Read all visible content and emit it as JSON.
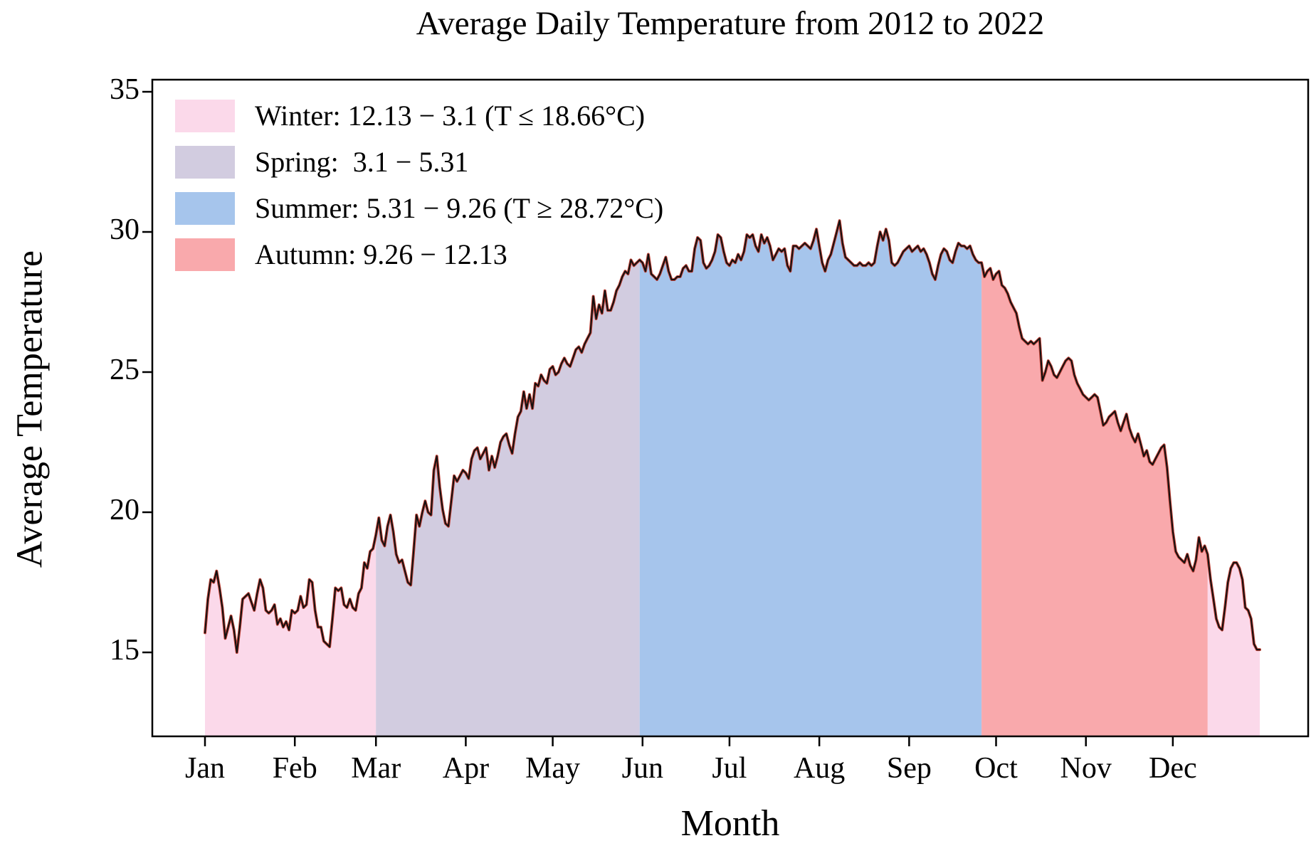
{
  "title": "Average Daily Temperature from 2012 to 2022",
  "axes": {
    "x_label": "Month",
    "y_label": "Average Temperature",
    "x_ticks": [
      "Jan",
      "Feb",
      "Mar",
      "Apr",
      "May",
      "Jun",
      "Jul",
      "Aug",
      "Sep",
      "Oct",
      "Nov",
      "Dec"
    ],
    "y_ticks": [
      15,
      20,
      25,
      30,
      35
    ]
  },
  "chart_data": {
    "type": "area",
    "title": "Average Daily Temperature from 2012 to 2022",
    "xlabel": "Month",
    "ylabel": "Average Temperature",
    "x_unit": "day_of_year_2012_2022_average",
    "ylim": [
      12,
      35.4
    ],
    "grid": false,
    "legend_position": "upper-left",
    "month_start_days": [
      0,
      31,
      59,
      90,
      120,
      151,
      181,
      212,
      243,
      273,
      304,
      334
    ],
    "line_color": "#111111",
    "line_underlay_color": "#bf4136",
    "axis_color": "#000000",
    "seasons": [
      {
        "name": "winter",
        "label": "Winter: 12.13 − 3.1 (T ≤ 18.66°C)",
        "color": "#fbd9ea",
        "segments": [
          [
            0,
            59
          ],
          [
            346,
            364
          ]
        ]
      },
      {
        "name": "spring",
        "label": "Spring:  3.1 − 5.31",
        "color": "#d2cce0",
        "segments": [
          [
            59,
            150
          ]
        ]
      },
      {
        "name": "summer",
        "label": "Summer: 5.31 − 9.26 (T ≥ 28.72°C)",
        "color": "#a6c5ec",
        "segments": [
          [
            150,
            268
          ]
        ]
      },
      {
        "name": "autumn",
        "label": "Autumn: 9.26 − 12.13",
        "color": "#f9a9ac",
        "segments": [
          [
            268,
            346
          ]
        ]
      }
    ],
    "series": [
      {
        "name": "daily_average_temperature_C",
        "values": [
          15.7,
          16.9,
          17.6,
          17.5,
          17.9,
          17.3,
          16.6,
          15.5,
          15.9,
          16.3,
          15.8,
          15.0,
          15.9,
          16.9,
          17.0,
          17.1,
          16.8,
          16.5,
          17.1,
          17.6,
          17.3,
          16.5,
          16.4,
          16.5,
          16.7,
          16.0,
          16.2,
          15.9,
          16.1,
          15.8,
          16.5,
          16.4,
          16.5,
          17.0,
          16.6,
          16.7,
          17.6,
          17.5,
          16.5,
          15.9,
          15.9,
          15.4,
          15.3,
          15.2,
          16.2,
          17.3,
          17.2,
          17.3,
          16.7,
          16.6,
          16.9,
          16.6,
          16.5,
          17.1,
          17.3,
          18.2,
          18.0,
          18.6,
          18.7,
          19.2,
          19.8,
          19.0,
          18.8,
          19.5,
          19.9,
          19.3,
          18.5,
          18.2,
          18.3,
          17.9,
          17.5,
          17.4,
          18.6,
          19.9,
          19.5,
          20.0,
          20.4,
          20.0,
          19.9,
          21.5,
          22.0,
          20.9,
          20.1,
          19.6,
          19.5,
          20.4,
          21.3,
          21.1,
          21.3,
          21.5,
          21.4,
          21.2,
          21.9,
          22.2,
          22.3,
          21.9,
          22.1,
          22.3,
          21.5,
          22.0,
          21.6,
          22.0,
          22.5,
          22.7,
          22.8,
          22.4,
          22.1,
          22.8,
          23.4,
          23.6,
          24.3,
          23.7,
          24.2,
          23.7,
          24.6,
          24.5,
          24.9,
          24.7,
          24.6,
          25.1,
          25.2,
          24.9,
          25.0,
          25.3,
          25.5,
          25.3,
          25.2,
          25.5,
          25.8,
          25.9,
          25.7,
          26.0,
          26.2,
          26.4,
          27.7,
          26.9,
          27.4,
          27.1,
          27.9,
          27.2,
          27.2,
          27.5,
          27.9,
          28.1,
          28.4,
          28.6,
          28.5,
          29.0,
          28.8,
          28.9,
          29.0,
          28.9,
          28.6,
          29.2,
          28.5,
          28.4,
          28.3,
          28.5,
          28.8,
          29.1,
          28.6,
          28.3,
          28.3,
          28.4,
          28.4,
          28.7,
          28.8,
          28.6,
          28.6,
          29.4,
          29.8,
          29.7,
          28.9,
          28.7,
          28.8,
          29.0,
          29.3,
          29.9,
          29.8,
          29.3,
          28.9,
          28.8,
          29.0,
          28.9,
          29.2,
          29.0,
          29.3,
          29.9,
          29.8,
          29.9,
          29.5,
          29.3,
          29.9,
          29.6,
          29.8,
          29.5,
          29.0,
          29.2,
          29.4,
          29.3,
          29.4,
          28.8,
          28.6,
          29.5,
          29.5,
          29.4,
          29.5,
          29.6,
          29.5,
          29.4,
          29.7,
          30.1,
          29.5,
          28.9,
          28.6,
          29.0,
          29.2,
          29.6,
          30.0,
          30.4,
          29.6,
          29.1,
          29.0,
          28.9,
          28.8,
          28.8,
          28.9,
          28.8,
          28.8,
          28.9,
          28.8,
          28.9,
          29.5,
          30.0,
          29.7,
          30.1,
          29.7,
          28.9,
          28.8,
          28.9,
          29.1,
          29.3,
          29.4,
          29.5,
          29.3,
          29.4,
          29.5,
          29.3,
          29.4,
          29.2,
          28.9,
          28.5,
          28.3,
          28.8,
          29.2,
          29.4,
          29.3,
          29.0,
          28.9,
          29.3,
          29.6,
          29.5,
          29.5,
          29.4,
          29.5,
          29.2,
          29.0,
          28.9,
          28.9,
          28.4,
          28.6,
          28.7,
          28.3,
          28.5,
          28.6,
          28.1,
          28.0,
          27.8,
          27.5,
          27.3,
          27.1,
          26.6,
          26.2,
          26.1,
          26.0,
          26.1,
          26.0,
          26.1,
          26.2,
          24.7,
          25.0,
          25.4,
          25.2,
          24.9,
          24.8,
          25.0,
          25.2,
          25.4,
          25.5,
          25.4,
          24.9,
          24.6,
          24.4,
          24.2,
          24.1,
          24.0,
          24.1,
          24.2,
          24.1,
          23.6,
          23.1,
          23.2,
          23.4,
          23.5,
          23.6,
          23.2,
          22.9,
          23.2,
          23.5,
          23.0,
          22.7,
          22.5,
          22.8,
          22.4,
          22.0,
          22.2,
          21.8,
          21.7,
          21.9,
          22.1,
          22.3,
          22.4,
          21.6,
          20.4,
          19.3,
          18.6,
          18.4,
          18.3,
          18.2,
          18.5,
          18.1,
          17.9,
          18.3,
          19.1,
          18.6,
          18.8,
          18.5,
          17.6,
          16.9,
          16.2,
          15.9,
          15.8,
          16.6,
          17.5,
          18.0,
          18.2,
          18.2,
          18.0,
          17.6,
          16.6,
          16.5,
          16.2,
          15.3,
          15.1,
          15.1
        ]
      }
    ]
  }
}
